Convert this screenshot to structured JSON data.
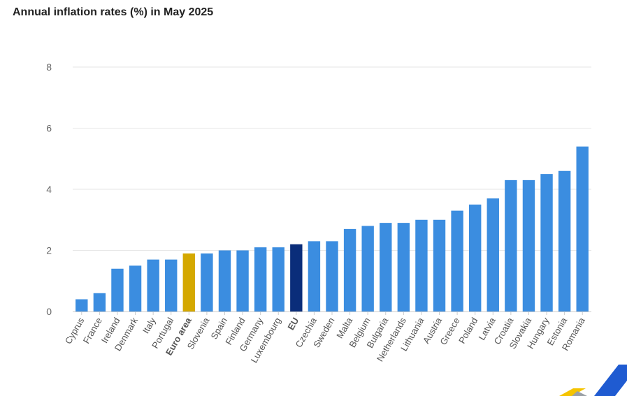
{
  "chart_data": {
    "type": "bar",
    "title": "Annual inflation rates (%) in May 2025",
    "categories": [
      "Cyprus",
      "France",
      "Ireland",
      "Denmark",
      "Italy",
      "Portugal",
      "Euro area",
      "Slovenia",
      "Spain",
      "Finland",
      "Germany",
      "Luxembourg",
      "EU",
      "Czechia",
      "Sweden",
      "Malta",
      "Belgium",
      "Bulgaria",
      "Netherlands",
      "Lithuania",
      "Austria",
      "Greece",
      "Poland",
      "Latvia",
      "Croatia",
      "Slovakia",
      "Hungary",
      "Estonia",
      "Romania"
    ],
    "values": [
      0.4,
      0.6,
      1.4,
      1.5,
      1.7,
      1.7,
      1.9,
      1.9,
      2.0,
      2.0,
      2.1,
      2.1,
      2.2,
      2.3,
      2.3,
      2.7,
      2.8,
      2.9,
      2.9,
      3.0,
      3.0,
      3.3,
      3.5,
      3.7,
      4.3,
      4.3,
      4.5,
      4.6,
      5.4
    ],
    "highlight": {
      "Euro area": "#d4a800",
      "EU": "#0a2d7a"
    },
    "bold_categories": [
      "Euro area",
      "EU"
    ],
    "bar_color": "#3b8de0",
    "ylim": [
      0,
      8
    ],
    "yticks": [
      0,
      2,
      4,
      6,
      8
    ],
    "grid": true,
    "xlabel": "",
    "ylabel": ""
  }
}
